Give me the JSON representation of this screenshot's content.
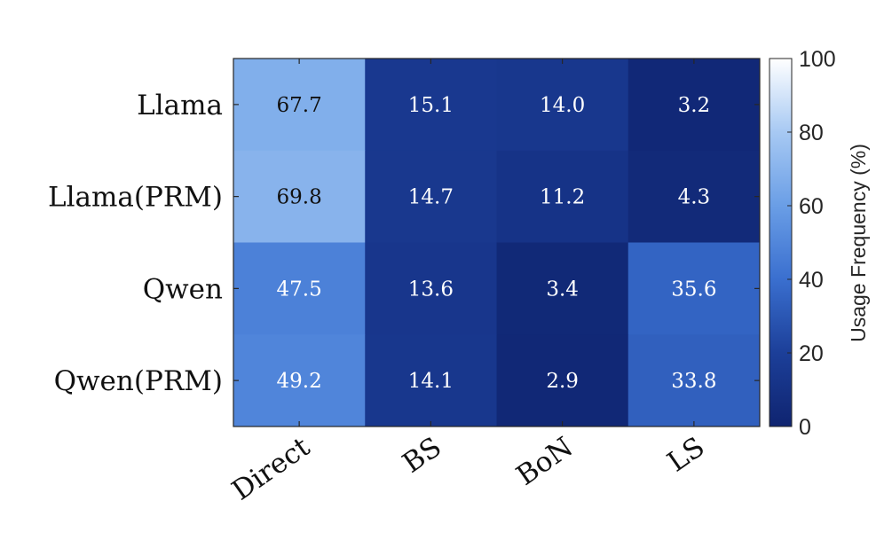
{
  "chart_data": {
    "type": "heatmap",
    "title": "",
    "xlabel": "",
    "ylabel": "",
    "categories_x": [
      "Direct",
      "BS",
      "BoN",
      "LS"
    ],
    "categories_y": [
      "Llama",
      "Llama(PRM)",
      "Qwen",
      "Qwen(PRM)"
    ],
    "values": [
      [
        67.7,
        15.1,
        14.0,
        3.2
      ],
      [
        69.8,
        14.7,
        11.2,
        4.3
      ],
      [
        47.5,
        13.6,
        3.4,
        35.6
      ],
      [
        49.2,
        14.1,
        2.9,
        33.8
      ]
    ],
    "cell_labels": [
      [
        "67.7",
        "15.1",
        "14.0",
        "3.2"
      ],
      [
        "69.8",
        "14.7",
        "11.2",
        "4.3"
      ],
      [
        "47.5",
        "13.6",
        "3.4",
        "35.6"
      ],
      [
        "49.2",
        "14.1",
        "2.9",
        "33.8"
      ]
    ],
    "colorbar": {
      "label": "Usage Frequency (%)",
      "range": [
        0,
        100
      ],
      "ticks": [
        0,
        20,
        40,
        60,
        80,
        100
      ],
      "tick_labels": [
        "0",
        "20",
        "40",
        "60",
        "80",
        "100"
      ],
      "colormap": [
        "#0f2470",
        "#1c3f99",
        "#3a6fcf",
        "#6a9ee6",
        "#a7c9f3",
        "#ffffff"
      ]
    },
    "grid": false,
    "legend": "colorbar-right"
  }
}
